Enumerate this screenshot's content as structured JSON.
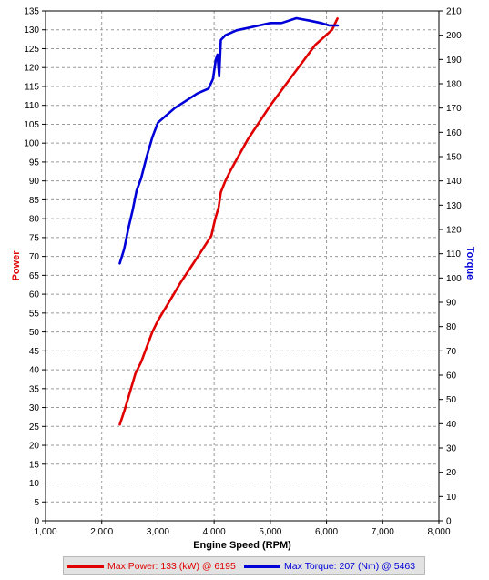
{
  "chart_data": {
    "type": "line",
    "xlabel": "Engine Speed (RPM)",
    "ylabel": "Power",
    "y2label": "Torque",
    "xlim": [
      1000,
      8000
    ],
    "ylim": [
      0,
      135
    ],
    "y2lim": [
      0,
      210
    ],
    "x_ticks": [
      "1,000",
      "2,000",
      "3,000",
      "4,000",
      "5,000",
      "6,000",
      "7,000",
      "8,000"
    ],
    "y_ticks": [
      "0",
      "5",
      "10",
      "15",
      "20",
      "25",
      "30",
      "35",
      "40",
      "45",
      "50",
      "55",
      "60",
      "65",
      "70",
      "75",
      "80",
      "85",
      "90",
      "95",
      "100",
      "105",
      "110",
      "115",
      "120",
      "125",
      "130",
      "135"
    ],
    "y2_ticks": [
      "0",
      "10",
      "20",
      "30",
      "40",
      "50",
      "60",
      "70",
      "80",
      "90",
      "100",
      "110",
      "120",
      "130",
      "140",
      "150",
      "160",
      "170",
      "180",
      "190",
      "200",
      "210"
    ],
    "grid": true,
    "series": [
      {
        "name": "Power",
        "axis": "left",
        "color": "#e00000",
        "x": [
          2320,
          2400,
          2500,
          2600,
          2700,
          2800,
          2900,
          3000,
          3200,
          3400,
          3600,
          3800,
          3950,
          4020,
          4080,
          4120,
          4200,
          4300,
          4450,
          4600,
          4800,
          5000,
          5200,
          5400,
          5600,
          5800,
          5950,
          6100,
          6195
        ],
        "y": [
          25.5,
          29,
          34,
          39,
          42,
          46,
          50,
          53,
          58,
          63,
          67.5,
          72,
          75.5,
          80,
          83,
          87,
          90,
          93,
          97,
          101,
          105.5,
          110,
          114,
          118,
          122,
          126,
          128,
          130,
          133
        ]
      },
      {
        "name": "Torque",
        "axis": "right",
        "color": "#0000d8",
        "x": [
          2320,
          2400,
          2480,
          2550,
          2620,
          2700,
          2800,
          2900,
          3000,
          3100,
          3300,
          3500,
          3700,
          3900,
          3980,
          4030,
          4060,
          4090,
          4120,
          4200,
          4400,
          4600,
          4800,
          5000,
          5200,
          5463,
          5700,
          5900,
          6050,
          6200
        ],
        "y": [
          106,
          112,
          121,
          128,
          136,
          141,
          150,
          158,
          164,
          166,
          170,
          173,
          176,
          178,
          182,
          190,
          192,
          183,
          198,
          200,
          202,
          203,
          204,
          205,
          205,
          207,
          206,
          205,
          204,
          204
        ]
      }
    ]
  },
  "legend": {
    "power_label": "Max Power: 133 (kW) @ 6195",
    "torque_label": "Max Torque: 207 (Nm) @ 5463"
  }
}
